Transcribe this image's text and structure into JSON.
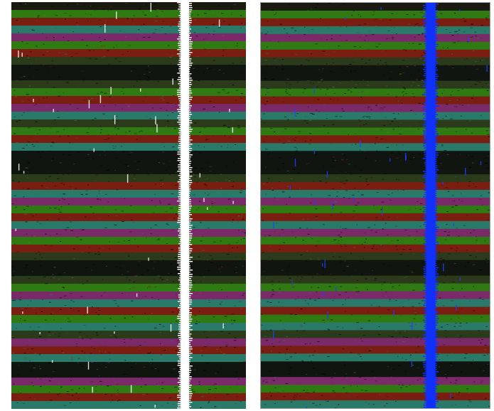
{
  "figure": {
    "panels": [
      {
        "id": "left",
        "content": "striped-noise-texture",
        "overlay_stripe_color": "#ffffff"
      },
      {
        "id": "right",
        "content": "striped-noise-texture",
        "overlay_stripe_color": "#1030ff"
      }
    ],
    "band_palette": [
      "#1a1a10",
      "#2f7a12",
      "#7a1e12",
      "#7a2a68",
      "#2a7a6a",
      "#2a3a1a",
      "#101510",
      "#5a7a12"
    ],
    "speck_color_left": "#ffffff",
    "speck_color_right": "#2040ff"
  }
}
